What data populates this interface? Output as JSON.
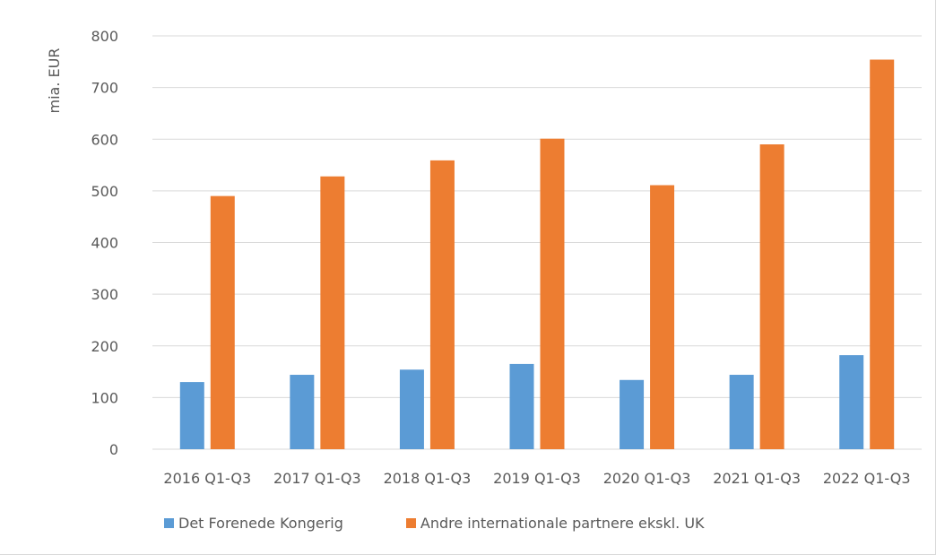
{
  "chart_data": {
    "type": "bar",
    "categories": [
      "2016 Q1-Q3",
      "2017 Q1-Q3",
      "2018 Q1-Q3",
      "2019 Q1-Q3",
      "2020 Q1-Q3",
      "2021 Q1-Q3",
      "2022 Q1-Q3"
    ],
    "series": [
      {
        "name": "Det Forenede Kongerig",
        "color": "#5b9bd5",
        "values": [
          130,
          144,
          154,
          165,
          134,
          144,
          182
        ]
      },
      {
        "name": "Andre internationale partnere ekskl. UK",
        "color": "#ed7d31",
        "values": [
          490,
          528,
          559,
          601,
          511,
          590,
          754
        ]
      }
    ],
    "ylabel": "mia. EUR",
    "ylim": [
      0,
      800
    ],
    "yticks": [
      "0",
      "100",
      "200",
      "300",
      "400",
      "500",
      "600",
      "700",
      "800"
    ],
    "grid": true,
    "legend_position": "bottom"
  }
}
